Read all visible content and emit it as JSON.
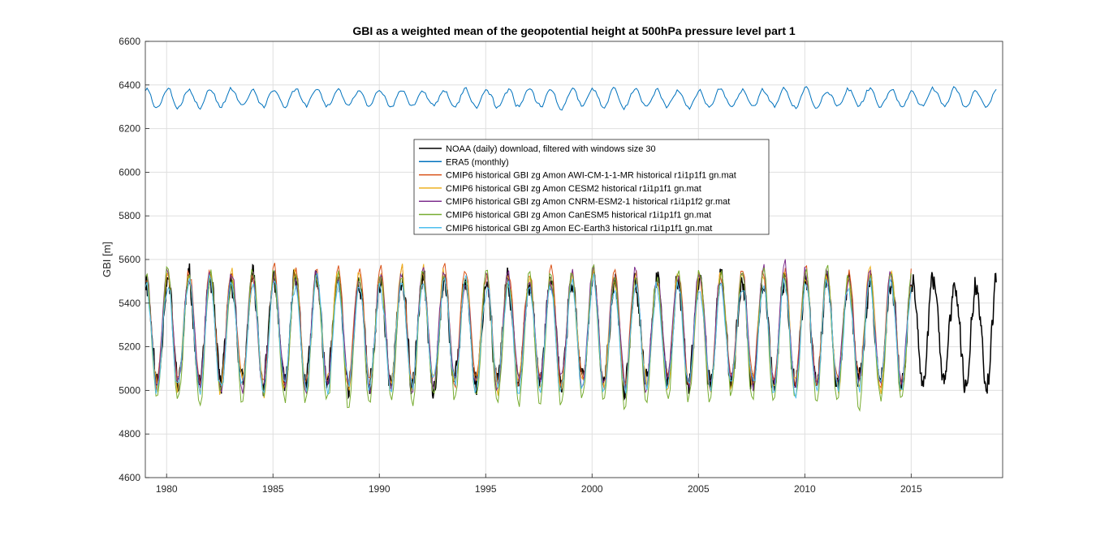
{
  "chart_data": {
    "type": "line",
    "title": "GBI as a weighted mean of the geopotential height at 500hPa pressure level part 1",
    "xlabel": "",
    "ylabel": "GBI [m]",
    "xlim": [
      1979,
      2019.3
    ],
    "ylim": [
      4600,
      6600
    ],
    "xticks": [
      1980,
      1985,
      1990,
      1995,
      2000,
      2005,
      2010,
      2015
    ],
    "yticks": [
      4600,
      4800,
      5000,
      5200,
      5400,
      5600,
      5800,
      6000,
      6200,
      6400,
      6600
    ],
    "grid": true,
    "legend_position": "upper-center",
    "series": [
      {
        "name": "NOAA (daily) download, filtered with windows size 30",
        "color": "#000000",
        "start": 1979.0,
        "end": 2019.0,
        "mean": 5270,
        "amplitude": 235,
        "noise": 45,
        "seed": 11,
        "samples_per_year": 40
      },
      {
        "name": "ERA5 (monthly)",
        "color": "#0072BD",
        "start": 1979.0,
        "end": 2019.0,
        "mean": 6340,
        "amplitude": 40,
        "noise": 10,
        "seed": 3,
        "samples_per_year": 12
      },
      {
        "name": "CMIP6 historical GBI zg Amon AWI-CM-1-1-MR historical r1i1p1f1 gn.mat",
        "color": "#D95319",
        "start": 1979.0,
        "end": 2015.0,
        "mean": 5290,
        "amplitude": 250,
        "noise": 35,
        "seed": 21,
        "samples_per_year": 12
      },
      {
        "name": "CMIP6 historical GBI zg Amon CESM2 historical r1i1p1f1 gn.mat",
        "color": "#EDB120",
        "start": 1979.0,
        "end": 2015.0,
        "mean": 5270,
        "amplitude": 255,
        "noise": 35,
        "seed": 31,
        "samples_per_year": 12
      },
      {
        "name": "CMIP6 historical GBI zg Amon CNRM-ESM2-1 historical r1i1p1f2 gr.mat",
        "color": "#7E2F8E",
        "start": 1979.0,
        "end": 2015.0,
        "mean": 5280,
        "amplitude": 250,
        "noise": 35,
        "seed": 41,
        "samples_per_year": 12
      },
      {
        "name": "CMIP6 historical GBI zg Amon CanESM5 historical r1i1p1f1 gn.mat",
        "color": "#77AC30",
        "start": 1979.0,
        "end": 2015.0,
        "mean": 5240,
        "amplitude": 290,
        "noise": 30,
        "seed": 51,
        "samples_per_year": 12
      },
      {
        "name": "CMIP6 historical GBI zg Amon EC-Earth3 historical r1i1p1f1 gn.mat",
        "color": "#4DBEEE",
        "start": 1979.0,
        "end": 2015.0,
        "mean": 5250,
        "amplitude": 240,
        "noise": 35,
        "seed": 61,
        "samples_per_year": 12
      }
    ]
  }
}
